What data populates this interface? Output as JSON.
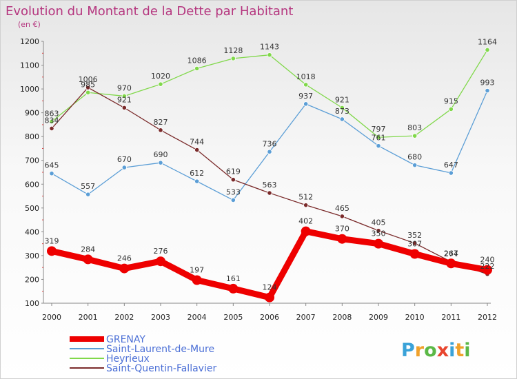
{
  "title": "Evolution du Montant de la Dette par Habitant",
  "subtitle": "(en €)",
  "brand": {
    "letters": [
      "P",
      "r",
      "o",
      "x",
      "i",
      "t",
      "i"
    ],
    "colors": [
      "#3aa2d8",
      "#f0a12b",
      "#5bb846",
      "#e8452e",
      "#3aa2d8",
      "#f0a12b",
      "#5bb846"
    ]
  },
  "chart_data": {
    "type": "line",
    "title": "Evolution du Montant de la Dette par Habitant",
    "subtitle": "(en €)",
    "xlabel": "",
    "ylabel": "",
    "x": [
      "2000",
      "2001",
      "2002",
      "2003",
      "2004",
      "2005",
      "2006",
      "2007",
      "2008",
      "2009",
      "2010",
      "2011",
      "2012"
    ],
    "ylim": [
      100,
      1200
    ],
    "yticks": [
      "100",
      "200",
      "300",
      "400",
      "500",
      "600",
      "700",
      "800",
      "900",
      "1000",
      "1100",
      "1200"
    ],
    "grid": false,
    "legend_placement": "bottom-left",
    "series": [
      {
        "name": "GRENAY",
        "color": "#ee0000",
        "values": [
          319,
          284,
          246,
          276,
          197,
          161,
          124,
          402,
          370,
          350,
          307,
          267,
          240
        ],
        "labels": [
          "319",
          "284",
          "246",
          "276",
          "197",
          "161",
          "124",
          "402",
          "370",
          "350",
          "307",
          "267",
          "240"
        ]
      },
      {
        "name": "Saint-Laurent-de-Mure",
        "color": "#5b9ed6",
        "values": [
          645,
          557,
          670,
          690,
          612,
          533,
          736,
          937,
          873,
          761,
          680,
          647,
          993
        ],
        "labels": [
          "645",
          "557",
          "670",
          "690",
          "612",
          "533",
          "736",
          "937",
          "873",
          "761",
          "680",
          "647",
          "993"
        ]
      },
      {
        "name": "Heyrieux",
        "color": "#80d84a",
        "values": [
          863,
          985,
          970,
          1020,
          1086,
          1128,
          1143,
          1018,
          921,
          797,
          803,
          915,
          1164
        ],
        "labels": [
          "863",
          "985",
          "970",
          "1020",
          "1086",
          "1128",
          "1143",
          "1018",
          "921",
          "797",
          "803",
          "915",
          "1164"
        ]
      },
      {
        "name": "Saint-Quentin-Fallavier",
        "color": "#7a2a2a",
        "values": [
          834,
          1006,
          921,
          827,
          744,
          619,
          563,
          512,
          465,
          405,
          352,
          274,
          222
        ],
        "labels": [
          "834",
          "1006",
          "921",
          "827",
          "744",
          "619",
          "563",
          "512",
          "465",
          "405",
          "352",
          "274",
          "222"
        ]
      }
    ]
  }
}
